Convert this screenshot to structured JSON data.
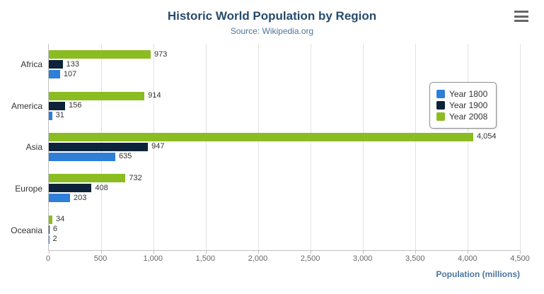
{
  "header": {
    "title": "Historic World Population by Region",
    "subtitle": "Source: Wikipedia.org"
  },
  "toolbar": {
    "export_menu_icon": "hamburger-icon"
  },
  "chart_data": {
    "type": "bar",
    "orientation": "horizontal",
    "title": "Historic World Population by Region",
    "subtitle": "Source: Wikipedia.org",
    "categories": [
      "Africa",
      "America",
      "Asia",
      "Europe",
      "Oceania"
    ],
    "series": [
      {
        "name": "Year 1800",
        "color": "#2f7ed8",
        "values": [
          107,
          31,
          635,
          203,
          2
        ],
        "labels": [
          "107",
          "31",
          "635",
          "203",
          "2"
        ]
      },
      {
        "name": "Year 1900",
        "color": "#0d233a",
        "values": [
          133,
          156,
          947,
          408,
          6
        ],
        "labels": [
          "133",
          "156",
          "947",
          "408",
          "6"
        ]
      },
      {
        "name": "Year 2008",
        "color": "#8bbc21",
        "values": [
          973,
          914,
          4054,
          732,
          34
        ],
        "labels": [
          "973",
          "914",
          "4,054",
          "732",
          "34"
        ]
      }
    ],
    "display_order_top_to_bottom": [
      2,
      1,
      0
    ],
    "xlabel": "Population (millions)",
    "xlim": [
      0,
      4500
    ],
    "ticks": [
      {
        "value": 0,
        "label": "0"
      },
      {
        "value": 500,
        "label": "500"
      },
      {
        "value": 1000,
        "label": "1,000"
      },
      {
        "value": 1500,
        "label": "1,500"
      },
      {
        "value": 2000,
        "label": "2,000"
      },
      {
        "value": 2500,
        "label": "2,500"
      },
      {
        "value": 3000,
        "label": "3,000"
      },
      {
        "value": 3500,
        "label": "3,500"
      },
      {
        "value": 4000,
        "label": "4,000"
      },
      {
        "value": 4500,
        "label": "4,500"
      }
    ],
    "grid": true,
    "legend_position": "right"
  }
}
